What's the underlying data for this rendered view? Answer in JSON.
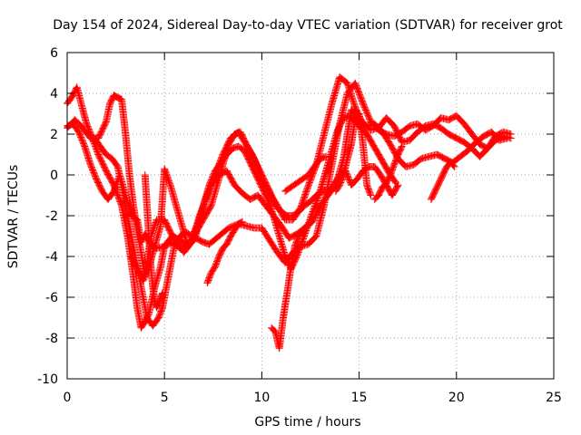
{
  "chart_data": {
    "type": "scatter",
    "title": "Day 154 of 2024, Sidereal Day-to-day VTEC variation (SDTVAR) for receiver grot",
    "xlabel": "GPS time / hours",
    "ylabel": "SDTVAR / TECUs",
    "xlim": [
      0,
      25
    ],
    "ylim": [
      -10,
      6
    ],
    "xticks": [
      0,
      5,
      10,
      15,
      20,
      25
    ],
    "yticks": [
      -10,
      -8,
      -6,
      -4,
      -2,
      0,
      2,
      4,
      6
    ],
    "x_tick_labels": [
      "0",
      "5",
      "10",
      "15",
      "20",
      "25"
    ],
    "y_tick_labels": [
      "-10",
      "-8",
      "-6",
      "-4",
      "-2",
      "0",
      "2",
      "4",
      "6"
    ],
    "grid": true,
    "marker": "+",
    "series_color": "#ff0000",
    "series": [
      {
        "x": [
          0.0,
          0.3,
          0.5,
          0.8,
          1.0,
          1.3,
          1.6,
          2.0,
          2.4,
          2.8,
          3.1,
          3.4,
          3.6,
          3.8,
          4.0,
          4.2,
          4.5,
          4.8,
          5.0,
          5.4,
          5.8,
          6.2,
          6.6,
          7.0,
          7.3,
          7.8,
          8.3,
          8.8,
          9.2,
          9.6,
          10.0,
          10.4,
          10.8,
          11.2,
          11.6,
          12.0,
          12.4,
          12.8,
          13.2,
          13.6,
          14.0,
          14.4,
          14.8,
          15.2,
          15.6,
          16.0,
          16.4,
          16.8,
          17.2,
          17.6,
          18.0,
          18.4,
          18.8,
          19.2,
          19.6,
          20.0,
          20.4,
          20.8,
          21.2,
          21.6,
          22.0,
          22.4,
          22.8
        ],
        "y": [
          3.5,
          3.9,
          4.3,
          3.2,
          2.5,
          1.8,
          1.0,
          0.2,
          -0.5,
          -1.5,
          -3.0,
          -5.0,
          -6.5,
          -7.5,
          -7.2,
          -6.8,
          -5.5,
          -4.5,
          -3.5,
          -3.0,
          -3.2,
          -3.5,
          -3.1,
          -3.3,
          -3.4,
          -3.0,
          -2.6,
          -2.4,
          -2.5,
          -2.6,
          -2.6,
          -3.2,
          -3.8,
          -4.3,
          -3.8,
          -3.5,
          -3.4,
          -3.0,
          -1.5,
          0.5,
          2.5,
          4.0,
          4.5,
          3.5,
          2.6,
          2.2,
          2.0,
          1.9,
          2.1,
          2.4,
          2.5,
          2.2,
          2.4,
          2.8,
          2.7,
          2.9,
          2.5,
          2.0,
          1.5,
          1.3,
          1.9,
          2.1,
          2.0
        ]
      },
      {
        "x": [
          0.0,
          0.4,
          0.8,
          1.2,
          1.6,
          2.0,
          2.2,
          2.4,
          2.6,
          2.8,
          3.0,
          3.2,
          3.4,
          3.6,
          3.8,
          4.0,
          4.3,
          4.6,
          5.0,
          5.3,
          5.6,
          6.0,
          6.4,
          6.8,
          7.2,
          7.6,
          8.0,
          8.4,
          8.8,
          9.2,
          9.6,
          10.0,
          10.4,
          10.8,
          11.2,
          11.6,
          12.0,
          12.4,
          12.8,
          13.2,
          13.6,
          14.0,
          14.4,
          14.8,
          15.2,
          15.6,
          16.0,
          16.4,
          16.8,
          17.2,
          17.6,
          18.0,
          18.4,
          18.8,
          19.2,
          19.6,
          20.0,
          20.4,
          20.8,
          21.2,
          21.6,
          22.0,
          22.4,
          22.8
        ],
        "y": [
          2.3,
          2.7,
          2.3,
          1.8,
          1.8,
          2.6,
          3.5,
          3.9,
          3.8,
          3.7,
          2.0,
          0.0,
          -1.5,
          -2.7,
          -3.8,
          -5.0,
          -3.0,
          -2.2,
          -2.2,
          -2.8,
          -3.3,
          -3.8,
          -3.3,
          -2.0,
          -1.0,
          0.0,
          1.0,
          1.8,
          2.1,
          1.5,
          0.8,
          -0.2,
          -0.9,
          -1.5,
          -2.2,
          -2.2,
          -1.6,
          -0.5,
          0.5,
          2.0,
          3.5,
          4.8,
          4.5,
          3.3,
          2.5,
          2.2,
          2.3,
          2.8,
          2.4,
          1.6,
          1.7,
          2.1,
          2.4,
          2.5,
          2.3,
          2.0,
          1.8,
          1.6,
          1.3,
          0.9,
          1.3,
          1.7,
          1.9,
          1.8
        ]
      },
      {
        "x": [
          0.0,
          0.3,
          0.6,
          0.9,
          1.2,
          1.5,
          1.8,
          2.1,
          2.4,
          2.7,
          3.0,
          3.3,
          3.6,
          3.8,
          4.0,
          4.3,
          4.6,
          5.0,
          5.4,
          5.8,
          6.2,
          6.6,
          7.0,
          7.4,
          7.8,
          8.2,
          8.6,
          9.0,
          9.4,
          9.8,
          10.2,
          10.6,
          11.0,
          11.4,
          11.8,
          12.2,
          12.6,
          13.0,
          13.4,
          13.8,
          14.2,
          14.6,
          15.0,
          15.4,
          15.8,
          16.2,
          16.6,
          17.0,
          17.4,
          17.8,
          18.2,
          18.6,
          19.0,
          19.4,
          19.8,
          20.2,
          20.6,
          21.0,
          21.4,
          21.8,
          22.2,
          22.6
        ],
        "y": [
          2.4,
          2.5,
          2.1,
          1.4,
          0.5,
          -0.2,
          -0.8,
          -1.2,
          -0.8,
          0.0,
          -1.0,
          -2.0,
          -2.2,
          -3.3,
          -2.9,
          -3.4,
          -3.6,
          -3.5,
          -3.3,
          -3.6,
          -3.4,
          -3.0,
          -1.5,
          -0.5,
          0.0,
          0.2,
          -0.5,
          -0.9,
          -1.2,
          -1.0,
          -1.5,
          -2.0,
          -2.5,
          -3.1,
          -2.9,
          -2.6,
          -2.3,
          -1.5,
          -1.0,
          -0.5,
          0.8,
          3.2,
          2.7,
          2.4,
          2.5,
          2.1,
          1.5,
          0.8,
          0.4,
          0.5,
          0.8,
          0.9,
          1.0,
          0.8,
          0.6,
          0.9,
          1.2,
          1.6,
          1.9,
          2.1,
          1.7,
          1.8
        ]
      },
      {
        "x": [
          3.3,
          3.6,
          3.9,
          4.2,
          4.5,
          4.8,
          5.0,
          5.3,
          5.6,
          5.9,
          6.2,
          6.5,
          6.8,
          7.1,
          7.4,
          7.7,
          8.0,
          8.3,
          8.6,
          8.9,
          9.2,
          9.5,
          9.8,
          10.1,
          10.4,
          10.7,
          11.0,
          11.3,
          11.6,
          11.9,
          12.2,
          12.5,
          12.8,
          13.1,
          13.4,
          13.7,
          14.0,
          14.3,
          14.6,
          14.9,
          15.2,
          15.5,
          15.8,
          16.1,
          16.4,
          16.7,
          17.0
        ],
        "y": [
          -4.0,
          -4.6,
          -5.2,
          -4.5,
          -3.5,
          -2.5,
          0.3,
          -0.5,
          -1.5,
          -2.5,
          -3.5,
          -3.0,
          -2.5,
          -2.0,
          -1.5,
          -0.5,
          0.5,
          1.5,
          2.0,
          2.1,
          1.5,
          1.0,
          0.4,
          -0.2,
          -0.8,
          -1.5,
          -1.8,
          -2.0,
          -2.0,
          -1.8,
          -1.5,
          -1.3,
          -1.0,
          -0.8,
          -0.8,
          -0.5,
          0.0,
          0.2,
          -0.5,
          -0.2,
          0.2,
          0.4,
          0.4,
          0.0,
          -0.5,
          -1.0,
          -0.5
        ]
      },
      {
        "x": [
          1.4,
          1.7,
          2.0,
          2.3,
          2.6,
          2.9,
          3.2,
          3.5,
          3.8,
          4.1,
          4.4,
          4.7,
          4.9,
          5.2,
          5.5,
          5.8,
          6.1,
          6.4,
          6.7,
          7.0,
          7.3,
          7.6,
          7.9,
          8.2,
          8.5,
          8.8,
          9.1,
          9.4,
          9.7,
          10.0,
          10.3,
          10.6,
          10.9,
          11.2,
          11.5,
          11.8,
          12.1,
          12.4,
          12.7,
          13.0,
          13.3,
          13.6,
          13.9,
          14.2,
          14.5,
          14.8,
          15.1,
          15.4,
          15.7,
          16.0,
          16.3,
          16.6,
          16.9
        ],
        "y": [
          1.8,
          1.4,
          1.0,
          0.8,
          0.4,
          -1.0,
          -2.5,
          -4.0,
          -5.5,
          -7.0,
          -7.4,
          -7.0,
          -6.5,
          -5.0,
          -3.5,
          -3.0,
          -2.8,
          -3.0,
          -2.5,
          -1.5,
          -0.5,
          0.2,
          0.6,
          1.0,
          1.3,
          1.4,
          1.2,
          0.6,
          0.0,
          -0.6,
          -1.2,
          -2.0,
          -3.0,
          -4.0,
          -4.6,
          -4.0,
          -3.2,
          -2.4,
          -1.6,
          -0.8,
          0.2,
          1.2,
          2.2,
          2.8,
          2.9,
          2.6,
          2.3,
          2.0,
          1.5,
          1.0,
          0.5,
          0.0,
          -0.4
        ]
      },
      {
        "x": [
          4.0,
          4.1,
          4.2,
          4.3,
          4.4,
          4.5,
          4.6,
          4.7,
          4.8,
          4.9
        ],
        "y": [
          0.0,
          -1.5,
          -3.0,
          -4.5,
          -5.5,
          -6.2,
          -6.5,
          -6.3,
          -6.0,
          -5.8
        ]
      },
      {
        "x": [
          7.2,
          7.4,
          7.6,
          7.8,
          8.0,
          8.2,
          8.4,
          8.6,
          8.8,
          9.0
        ],
        "y": [
          -5.3,
          -4.8,
          -4.5,
          -4.0,
          -3.6,
          -3.4,
          -3.0,
          -2.7,
          -2.4,
          -2.3
        ]
      },
      {
        "x": [
          10.5,
          10.7,
          10.9,
          11.1,
          11.3,
          11.5,
          11.7,
          11.9,
          12.1,
          12.3,
          12.5
        ],
        "y": [
          -7.5,
          -7.7,
          -8.5,
          -7.0,
          -5.8,
          -4.5,
          -3.5,
          -3.0,
          -2.8,
          -2.5,
          -2.3
        ]
      },
      {
        "x": [
          11.2,
          11.5,
          11.8,
          12.1,
          12.4,
          12.7,
          13.0,
          13.3
        ],
        "y": [
          -0.8,
          -0.6,
          -0.4,
          -0.2,
          0.0,
          0.4,
          0.8,
          0.9
        ]
      },
      {
        "x": [
          13.8,
          14.0,
          14.2,
          14.4,
          14.6,
          14.8,
          15.0,
          15.2,
          15.4,
          15.6
        ],
        "y": [
          -0.8,
          -0.5,
          0.0,
          0.8,
          1.5,
          2.8,
          3.0,
          1.5,
          -0.5,
          -1.0
        ]
      },
      {
        "x": [
          15.8,
          16.0,
          16.2,
          16.4,
          16.6,
          16.8,
          17.0,
          17.2
        ],
        "y": [
          -1.2,
          -1.0,
          -0.6,
          -0.4,
          0.0,
          0.5,
          1.0,
          1.4
        ]
      },
      {
        "x": [
          18.7,
          18.9,
          19.1,
          19.3,
          19.5,
          19.7,
          19.9
        ],
        "y": [
          -1.2,
          -0.8,
          -0.4,
          0.0,
          0.4,
          0.6,
          0.4
        ]
      }
    ]
  }
}
